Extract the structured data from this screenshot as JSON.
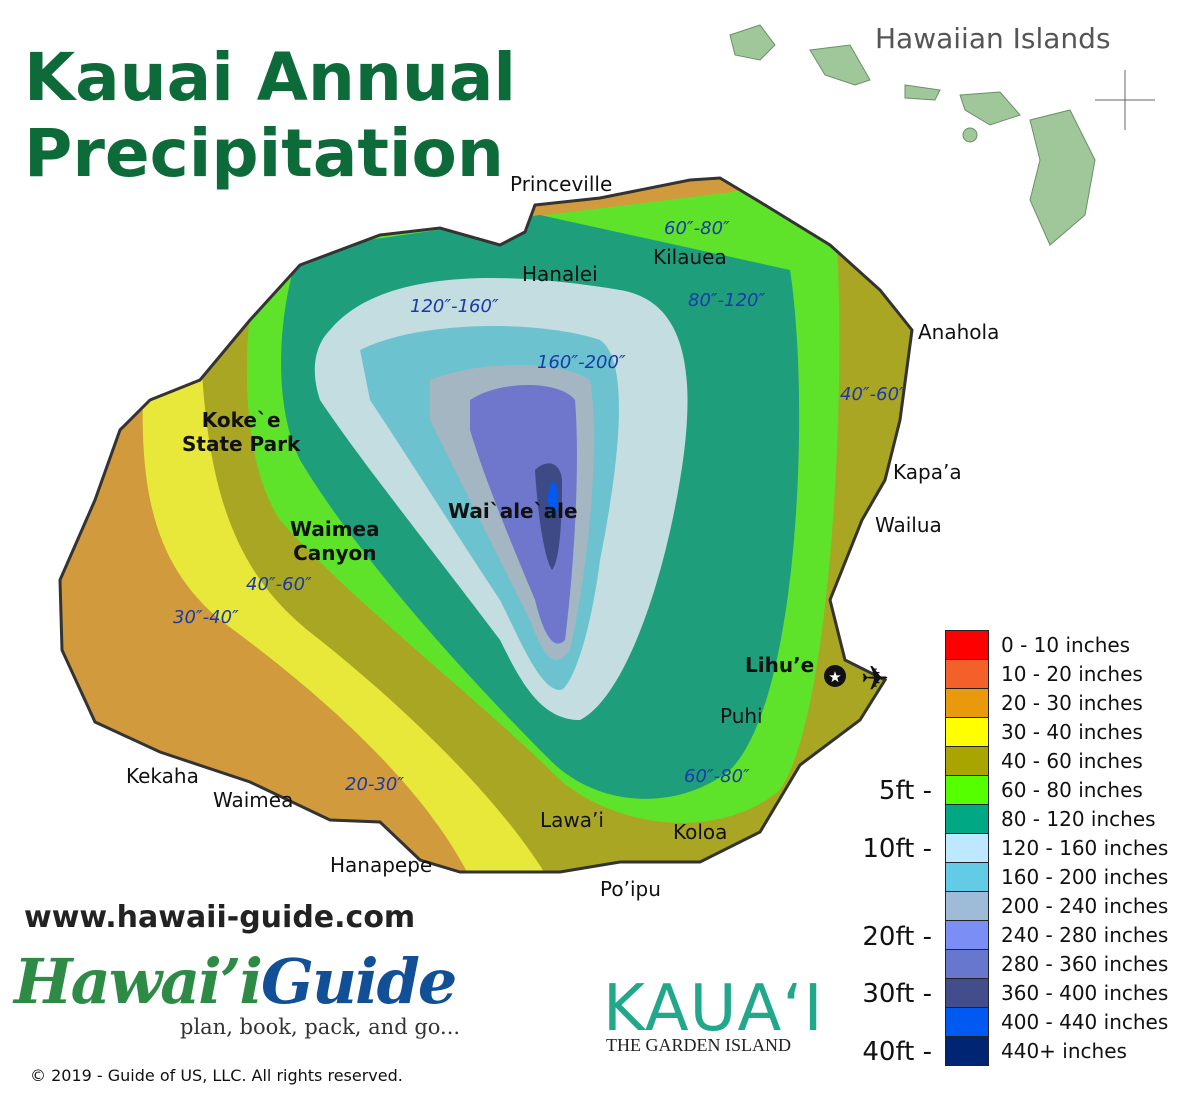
{
  "title": [
    "Kauai Annual",
    "Precipitation"
  ],
  "inset_title": "Hawaiian Islands",
  "places": {
    "princeville": "Princeville",
    "hanalei": "Hanalei",
    "kilauea": "Kilauea",
    "anahola": "Anahola",
    "kapaa": "Kapa’a",
    "wailua": "Wailua",
    "lihue": "Lihu’e",
    "puhi": "Puhi",
    "koloa": "Koloa",
    "lawai": "Lawa’i",
    "poipu": "Po’ipu",
    "hanapepe": "Hanapepe",
    "waimea": "Waimea",
    "kekaha": "Kekaha",
    "kokee": [
      "Koke`e",
      "State Park"
    ],
    "waimea_canyon": [
      "Waimea",
      "Canyon"
    ],
    "waialeale": "Wai`ale`ale"
  },
  "band_labels": {
    "north_60_80": "60″-80″",
    "north_80_120": "80″-120″",
    "nw_120_160": "120″-160″",
    "center_160_200": "160″-200″",
    "east_40_60": "40″-60″",
    "west_40_60": "40″-60″",
    "west_30_40": "30″-40″",
    "sw_20_30": "20-30″",
    "south_60_80": "60″-80″"
  },
  "legend": [
    {
      "label": "0 - 10 inches",
      "color": "#ff0000"
    },
    {
      "label": "10 - 20 inches",
      "color": "#f4602a"
    },
    {
      "label": "20 - 30 inches",
      "color": "#e89a0c"
    },
    {
      "label": "30 - 40 inches",
      "color": "#ffff00"
    },
    {
      "label": "40 - 60 inches",
      "color": "#a8a400"
    },
    {
      "label": "60 - 80 inches",
      "color": "#55ff00"
    },
    {
      "label": "80 - 120 inches",
      "color": "#00a884"
    },
    {
      "label": "120 - 160 inches",
      "color": "#bee8ff"
    },
    {
      "label": "160 - 200 inches",
      "color": "#63cbe6"
    },
    {
      "label": "200 - 240 inches",
      "color": "#9ebbd7"
    },
    {
      "label": "240 - 280 inches",
      "color": "#7b8ef5"
    },
    {
      "label": "280 - 360 inches",
      "color": "#6677cd"
    },
    {
      "label": "360 - 400 inches",
      "color": "#434d8c"
    },
    {
      "label": "400 - 440 inches",
      "color": "#0059f0"
    },
    {
      "label": "440+ inches",
      "color": "#002673"
    }
  ],
  "feet_scale": [
    "5ft -",
    "10ft -",
    "20ft -",
    "30ft -",
    "40ft -"
  ],
  "website": "www.hawaii-guide.com",
  "logo": {
    "part1": "Hawai’i",
    "part2": "Guide",
    "tagline": "plan, book, pack, and go..."
  },
  "kauai_logo": {
    "name": "KAUA‘I",
    "tagline": "THE GARDEN ISLAND"
  },
  "copyright": "© 2019  - Guide of US, LLC. All rights reserved."
}
